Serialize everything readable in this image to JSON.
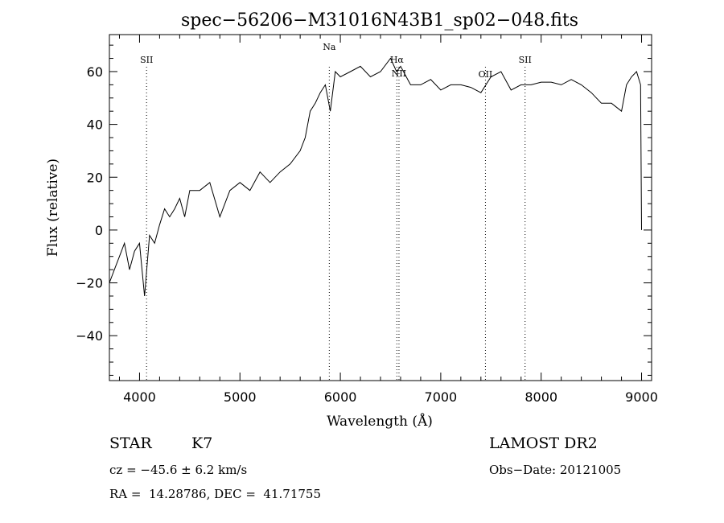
{
  "chart_data": {
    "type": "line",
    "title": "spec−56206−M31016N43B1_sp02−048.fits",
    "xlabel": "Wavelength (Å)",
    "ylabel": "Flux (relative)",
    "xlim": [
      3700,
      9100
    ],
    "ylim": [
      -57,
      74
    ],
    "x_ticks": [
      4000,
      5000,
      6000,
      7000,
      8000,
      9000
    ],
    "x_tick_labels": [
      "4000",
      "5000",
      "6000",
      "7000",
      "8000",
      "9000"
    ],
    "y_ticks": [
      -40,
      -20,
      0,
      20,
      40,
      60
    ],
    "y_tick_labels": [
      "−40",
      "−20",
      "0",
      "20",
      "40",
      "60"
    ],
    "series": [
      {
        "x": [
          3700,
          3750,
          3800,
          3850,
          3900,
          3950,
          4000,
          4050,
          4100,
          4150,
          4200,
          4250,
          4300,
          4350,
          4400,
          4450,
          4500,
          4600,
          4700,
          4800,
          4900,
          5000,
          5100,
          5200,
          5300,
          5400,
          5500,
          5600,
          5650,
          5700,
          5750,
          5800,
          5850,
          5900,
          5950,
          6000,
          6100,
          6200,
          6300,
          6400,
          6500,
          6560,
          6600,
          6700,
          6800,
          6900,
          7000,
          7100,
          7200,
          7300,
          7400,
          7500,
          7600,
          7700,
          7800,
          7900,
          8000,
          8100,
          8200,
          8300,
          8400,
          8500,
          8600,
          8700,
          8800,
          8850,
          8900,
          8950,
          8990,
          9000
        ],
        "y": [
          -20,
          -15,
          -10,
          -5,
          -15,
          -8,
          -5,
          -25,
          -2,
          -5,
          2,
          8,
          5,
          8,
          12,
          5,
          15,
          15,
          18,
          5,
          15,
          18,
          15,
          22,
          18,
          22,
          25,
          30,
          35,
          45,
          48,
          52,
          55,
          45,
          60,
          58,
          60,
          62,
          58,
          60,
          65,
          60,
          62,
          55,
          55,
          57,
          53,
          55,
          55,
          54,
          52,
          58,
          60,
          53,
          55,
          55,
          56,
          56,
          55,
          57,
          55,
          52,
          48,
          48,
          45,
          55,
          58,
          60,
          55,
          0
        ]
      }
    ],
    "vertical_lines": [
      {
        "x": 4070,
        "label": "SII"
      },
      {
        "x": 5890,
        "label": "Na"
      },
      {
        "x": 6563,
        "label": "Hα"
      },
      {
        "x": 6584,
        "label": "NII"
      },
      {
        "x": 7445,
        "label": "OII"
      },
      {
        "x": 7840,
        "label": "SII"
      }
    ],
    "grid": false,
    "legend": "none"
  },
  "info": {
    "class_label": "STAR",
    "subclass": "K7",
    "survey": "LAMOST DR2",
    "velocity": "cz = −45.6 ± 6.2 km/s",
    "obs_date": "Obs−Date: 20121005",
    "coords": "RA =  14.28786, DEC =  41.71755"
  }
}
